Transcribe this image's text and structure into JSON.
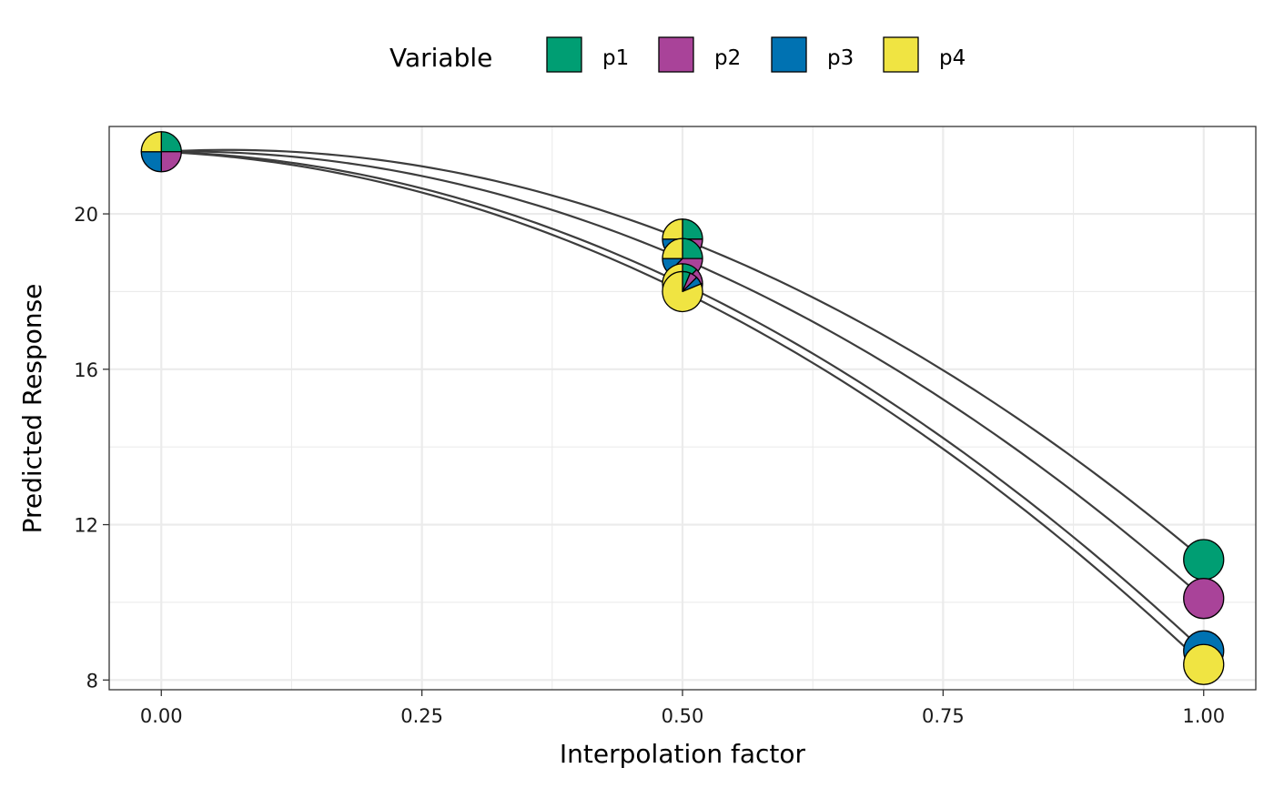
{
  "chart_data": {
    "type": "line",
    "xlabel": "Interpolation factor",
    "ylabel": "Predicted Response",
    "xlim": [
      -0.05,
      1.05
    ],
    "ylim": [
      7.75,
      22.25
    ],
    "x_ticks": [
      0.0,
      0.25,
      0.5,
      0.75,
      1.0
    ],
    "x_tick_labels": [
      "0.00",
      "0.25",
      "0.50",
      "0.75",
      "1.00"
    ],
    "x_minor_ticks": [
      0.125,
      0.375,
      0.625,
      0.875
    ],
    "y_ticks": [
      8,
      12,
      16,
      20
    ],
    "y_tick_labels": [
      "8",
      "12",
      "16",
      "20"
    ],
    "y_minor_ticks": [
      10,
      14,
      18
    ],
    "grid": true,
    "legend": {
      "title": "Variable",
      "position": "top",
      "entries": [
        {
          "label": "p1",
          "color": "#009E73"
        },
        {
          "label": "p2",
          "color": "#A94399"
        },
        {
          "label": "p3",
          "color": "#0072B2"
        },
        {
          "label": "p4",
          "color": "#F0E442"
        }
      ]
    },
    "series": [
      {
        "start": 21.6,
        "pie_point": 19.35,
        "end": 11.1,
        "end_color": "#009E73",
        "pie": [
          0.25,
          0.25,
          0.25,
          0.25
        ]
      },
      {
        "start": 21.6,
        "pie_point": 18.85,
        "end": 10.1,
        "end_color": "#A94399",
        "pie": [
          0.25,
          0.375,
          0.125,
          0.25
        ]
      },
      {
        "start": 21.6,
        "pie_point": 18.2,
        "end": 8.75,
        "end_color": "#0072B2",
        "pie": [
          0.125,
          0.125,
          0.125,
          0.625
        ]
      },
      {
        "start": 21.6,
        "pie_point": 18.0,
        "end": 8.4,
        "end_color": "#F0E442",
        "pie": [
          0.0625,
          0.0625,
          0.0625,
          0.8125
        ]
      }
    ],
    "start_point": {
      "x": 0,
      "y": 21.6,
      "pie": [
        0.25,
        0.25,
        0.25,
        0.25
      ]
    }
  }
}
